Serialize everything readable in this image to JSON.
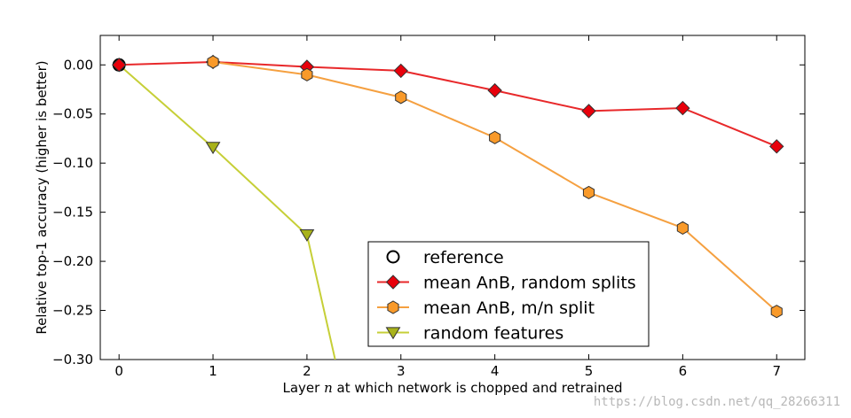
{
  "chart_data": {
    "type": "line",
    "xlabel_pre": "Layer ",
    "xlabel_var": "n",
    "xlabel_post": " at which network is chopped and retrained",
    "ylabel": "Relative top-1 accuracy (higher is better)",
    "xlim": [
      -0.2,
      7.3
    ],
    "ylim": [
      -0.3,
      0.03
    ],
    "xticks": [
      0,
      1,
      2,
      3,
      4,
      5,
      6,
      7
    ],
    "xtick_labels": [
      "0",
      "1",
      "2",
      "3",
      "4",
      "5",
      "6",
      "7"
    ],
    "yticks": [
      0.0,
      -0.05,
      -0.1,
      -0.15,
      -0.2,
      -0.25,
      -0.3
    ],
    "ytick_labels": [
      "0.00",
      "−0.05",
      "−0.10",
      "−0.15",
      "−0.20",
      "−0.25",
      "−0.30"
    ],
    "grid": false,
    "legend_position": "lower-right",
    "series": [
      {
        "name": "reference",
        "x": [
          0
        ],
        "y": [
          0.0
        ],
        "color": "#000000",
        "marker": "circle-open",
        "line": false
      },
      {
        "name": "mean AnB, random splits",
        "x": [
          0,
          1,
          2,
          3,
          4,
          5,
          6,
          7
        ],
        "y": [
          0.0,
          0.003,
          -0.002,
          -0.006,
          -0.026,
          -0.047,
          -0.044,
          -0.083
        ],
        "color": "#e8282a",
        "marker_fill": "#e8000b",
        "marker": "diamond",
        "line": true
      },
      {
        "name": "mean AnB, m/n split",
        "x": [
          1,
          2,
          3,
          4,
          5,
          6,
          7
        ],
        "y": [
          0.003,
          -0.01,
          -0.033,
          -0.074,
          -0.13,
          -0.166,
          -0.251
        ],
        "color": "#f5a040",
        "marker_fill": "#f99a2a",
        "marker": "hexagon",
        "line": true
      },
      {
        "name": "random features",
        "x": [
          0,
          1,
          2,
          2.3
        ],
        "y": [
          0.0,
          -0.084,
          -0.173,
          -0.3
        ],
        "marker_x": [
          1,
          2
        ],
        "marker_y": [
          -0.084,
          -0.173
        ],
        "color": "#c6cf37",
        "marker_fill": "#a8b21a",
        "marker": "triangle-down",
        "line": true
      }
    ]
  },
  "watermark": "https://blog.csdn.net/qq_28266311"
}
